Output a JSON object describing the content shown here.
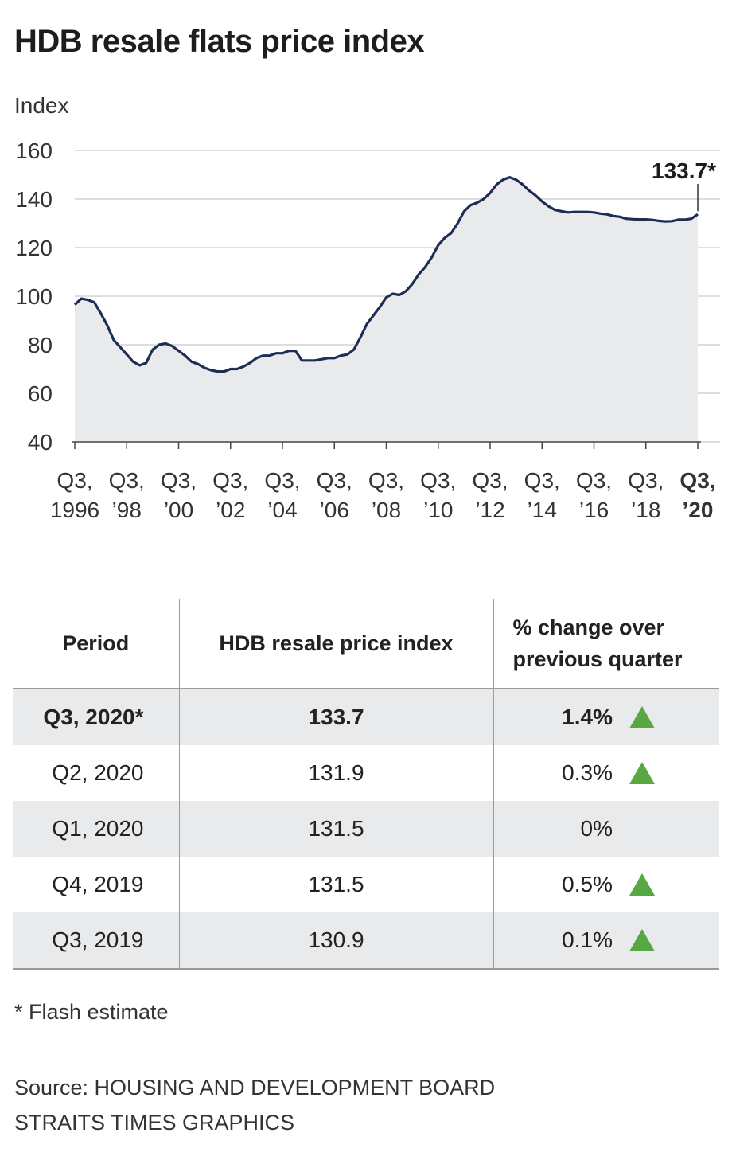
{
  "title": "HDB resale flats price index",
  "chart_data": {
    "type": "area",
    "title": "HDB resale flats price index",
    "ylabel": "Index",
    "xlabel": "",
    "ylim": [
      40,
      160
    ],
    "yticks": [
      40,
      60,
      80,
      100,
      120,
      140,
      160
    ],
    "grid": true,
    "x_ticks": [
      {
        "line1": "Q3,",
        "line2": "1996",
        "bold": false
      },
      {
        "line1": "Q3,",
        "line2": "’98",
        "bold": false
      },
      {
        "line1": "Q3,",
        "line2": "’00",
        "bold": false
      },
      {
        "line1": "Q3,",
        "line2": "’02",
        "bold": false
      },
      {
        "line1": "Q3,",
        "line2": "’04",
        "bold": false
      },
      {
        "line1": "Q3,",
        "line2": "’06",
        "bold": false
      },
      {
        "line1": "Q3,",
        "line2": "’08",
        "bold": false
      },
      {
        "line1": "Q3,",
        "line2": "’10",
        "bold": false
      },
      {
        "line1": "Q3,",
        "line2": "’12",
        "bold": false
      },
      {
        "line1": "Q3,",
        "line2": "’14",
        "bold": false
      },
      {
        "line1": "Q3,",
        "line2": "’16",
        "bold": false
      },
      {
        "line1": "Q3,",
        "line2": "’18",
        "bold": false
      },
      {
        "line1": "Q3,",
        "line2": "’20",
        "bold": true
      }
    ],
    "annotation": {
      "text": "133.7*",
      "value": 133.7
    },
    "series": [
      {
        "name": "HDB resale price index",
        "start": "Q3 1996",
        "values": [
          96.5,
          99,
          98.5,
          97.5,
          93,
          88,
          82,
          79,
          76,
          73,
          71.5,
          72.5,
          78,
          80,
          80.5,
          79.5,
          77.5,
          75.5,
          73,
          72,
          70.5,
          69.5,
          69,
          69,
          70,
          70,
          71,
          72.5,
          74.5,
          75.5,
          75.5,
          76.5,
          76.5,
          77.5,
          77.5,
          73.5,
          73.5,
          73.5,
          74,
          74.5,
          74.5,
          75.5,
          76,
          78,
          83,
          88.5,
          92,
          95.5,
          99.5,
          101,
          100.5,
          102,
          105,
          109,
          112,
          116,
          121,
          124,
          126,
          130,
          135,
          137.5,
          138.5,
          140,
          142.5,
          146,
          148,
          149,
          148,
          146,
          143.5,
          141.5,
          139,
          137,
          135.5,
          135,
          134.5,
          134.7,
          134.7,
          134.7,
          134.5,
          134,
          133.7,
          133,
          132.7,
          131.9,
          131.7,
          131.6,
          131.6,
          131.4,
          131,
          130.8,
          130.9,
          131.5,
          131.5,
          131.9,
          133.7
        ]
      }
    ]
  },
  "table": {
    "headers": {
      "period": "Period",
      "index": "HDB resale price index",
      "change_line1": "% change over",
      "change_line2": "previous quarter"
    },
    "rows": [
      {
        "period": "Q3, 2020*",
        "index": "133.7",
        "change": "1.4%",
        "arrow": "up"
      },
      {
        "period": "Q2, 2020",
        "index": "131.9",
        "change": "0.3%",
        "arrow": "up"
      },
      {
        "period": "Q1, 2020",
        "index": "131.5",
        "change": "0%",
        "arrow": "none"
      },
      {
        "period": "Q4, 2019",
        "index": "131.5",
        "change": "0.5%",
        "arrow": "up"
      },
      {
        "period": "Q3, 2019",
        "index": "130.9",
        "change": "0.1%",
        "arrow": "up"
      }
    ]
  },
  "footnote": "* Flash estimate",
  "source_line1": "Source: HOUSING AND DEVELOPMENT BOARD",
  "source_line2": "STRAITS TIMES GRAPHICS",
  "colors": {
    "line": "#1c2e55",
    "area": "#e8eaec",
    "up_arrow": "#57a843",
    "row_shade": "#e8eaec"
  }
}
